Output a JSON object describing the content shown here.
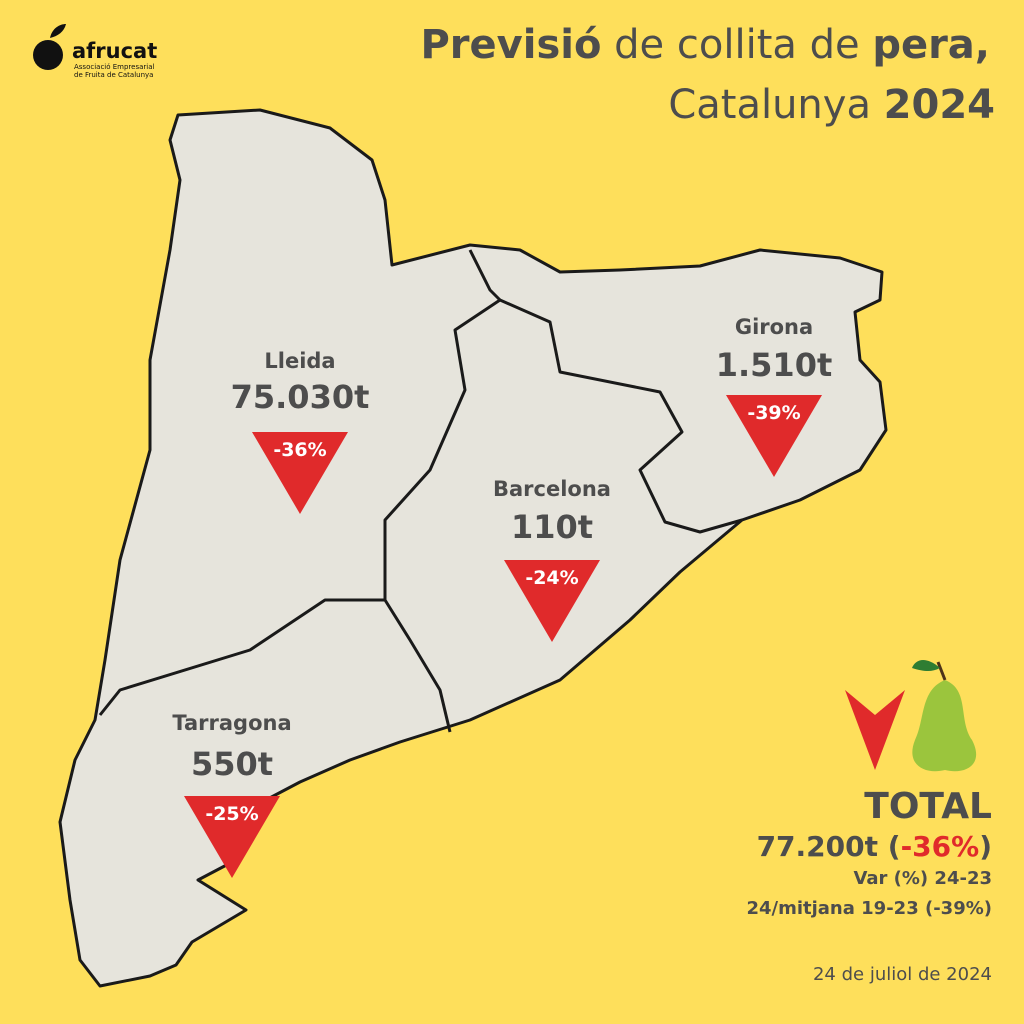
{
  "logo": {
    "name": "afrucat",
    "subtitle_1": "Associació Empresarial",
    "subtitle_2": "de Fruita de Catalunya"
  },
  "title": {
    "line_1": [
      "Previsió",
      " de collita de ",
      "pera,"
    ],
    "line_2": [
      "Catalunya ",
      "2024"
    ]
  },
  "regions": [
    {
      "name": "Lleida",
      "harvest": "75.030t",
      "change": "-36%"
    },
    {
      "name": "Girona",
      "harvest": "1.510t",
      "change": "-39%"
    },
    {
      "name": "Barcelona",
      "harvest": "110t",
      "change": "-24%"
    },
    {
      "name": "Tarragona",
      "harvest": "550t",
      "change": "-25%"
    }
  ],
  "total": {
    "label": "TOTAL",
    "amount": "77.200t (",
    "change": "-36%",
    "close": ")",
    "note_1": "Var (%) 24-23",
    "note_2": "24/mitjana 19-23 (-39%)"
  },
  "date": "24 de juliol de 2024"
}
